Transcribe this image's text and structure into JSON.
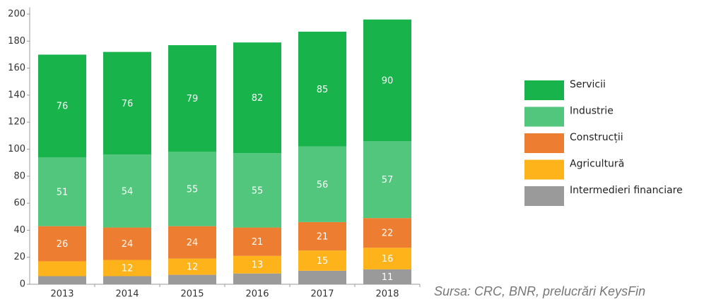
{
  "chart_data": {
    "type": "stacked_bar",
    "categories": [
      "2013",
      "2014",
      "2015",
      "2016",
      "2017",
      "2018"
    ],
    "series": [
      {
        "name": "Intermedieri financiare",
        "color": "#9a9a9a",
        "values": [
          6,
          6,
          7,
          8,
          10,
          11
        ],
        "value_labels": [
          null,
          null,
          null,
          null,
          null,
          "11"
        ]
      },
      {
        "name": "Agricultură",
        "color": "#ffb31a",
        "values": [
          11,
          12,
          12,
          13,
          15,
          16
        ],
        "value_labels": [
          null,
          "12",
          "12",
          "13",
          "15",
          "16"
        ]
      },
      {
        "name": "Construcții",
        "color": "#ed7d31",
        "values": [
          26,
          24,
          24,
          21,
          21,
          22
        ],
        "value_labels": [
          "26",
          "24",
          "24",
          "21",
          "21",
          "22"
        ]
      },
      {
        "name": "Industrie",
        "color": "#52c67d",
        "values": [
          51,
          54,
          55,
          55,
          56,
          57
        ],
        "value_labels": [
          "51",
          "54",
          "55",
          "55",
          "56",
          "57"
        ]
      },
      {
        "name": "Servicii",
        "color": "#19b34c",
        "values": [
          76,
          76,
          79,
          82,
          85,
          90
        ],
        "value_labels": [
          "76",
          "76",
          "79",
          "82",
          "85",
          "90"
        ]
      }
    ],
    "ylim": [
      0,
      205
    ],
    "yticks": [
      0,
      20,
      40,
      60,
      80,
      100,
      120,
      140,
      160,
      180,
      200
    ],
    "source": "Sursa: CRC, BNR, prelucrări KeysFin"
  }
}
